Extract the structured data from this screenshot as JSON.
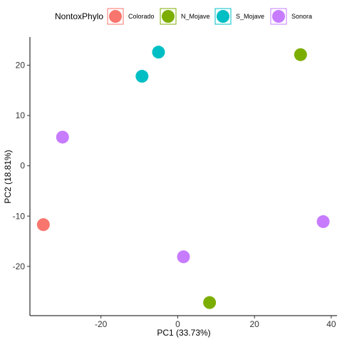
{
  "chart_data": {
    "type": "scatter",
    "title": "",
    "xlabel": "PC1 (33.73%)",
    "ylabel": "PC2 (18.81%)",
    "xlim": [
      -38.5,
      41.5
    ],
    "ylim": [
      -29.8,
      25.6
    ],
    "x_ticks": [
      -20,
      0,
      20,
      40
    ],
    "y_ticks": [
      -20,
      -10,
      0,
      10,
      20
    ],
    "x_tick_labels": [
      "-20",
      "0",
      "20",
      "40"
    ],
    "y_tick_labels": [
      "-20",
      "-10",
      "0",
      "10",
      "20"
    ],
    "grid": false,
    "legend": {
      "title": "NontoxPhylo",
      "position": "top"
    },
    "series": [
      {
        "name": "Colorado",
        "color": "#F8766D",
        "points": [
          {
            "x": -35.0,
            "y": -11.7
          }
        ]
      },
      {
        "name": "N_Mojave",
        "color": "#7CAE00",
        "points": [
          {
            "x": 32.0,
            "y": 22.1
          },
          {
            "x": 8.3,
            "y": -27.2
          }
        ]
      },
      {
        "name": "S_Mojave",
        "color": "#00BFC4",
        "points": [
          {
            "x": -5.0,
            "y": 22.6
          },
          {
            "x": -9.3,
            "y": 17.8
          }
        ]
      },
      {
        "name": "Sonora",
        "color": "#C77CFF",
        "points": [
          {
            "x": -30.0,
            "y": 5.7
          },
          {
            "x": 1.5,
            "y": -18.1
          },
          {
            "x": 37.9,
            "y": -11.1
          }
        ]
      }
    ]
  }
}
